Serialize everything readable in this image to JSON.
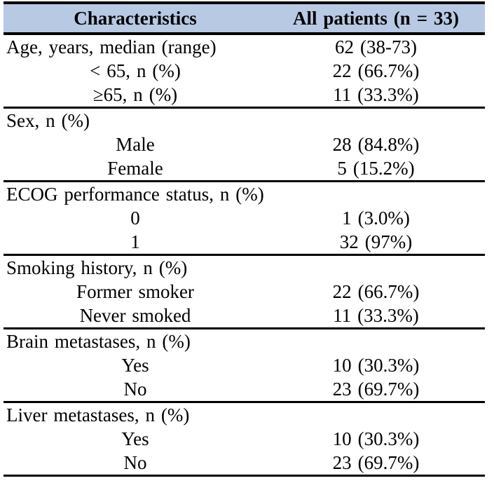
{
  "table": {
    "header": {
      "col1": "Characteristics",
      "col2": "All patients (n = 33)"
    },
    "colors": {
      "header_bg": "#b8c9e4",
      "rule": "#000000",
      "text": "#000000"
    },
    "sections": [
      {
        "rows": [
          {
            "label": "Age, years, median (range)",
            "value": "62 (38-73)"
          },
          {
            "label": "< 65, n (%)",
            "value": "22 (66.7%)"
          },
          {
            "label": "≥65, n (%)",
            "value": "11 (33.3%)"
          }
        ]
      },
      {
        "rows": [
          {
            "label": "Sex, n (%)",
            "value": ""
          },
          {
            "label": "Male",
            "value": "28 (84.8%)"
          },
          {
            "label": "Female",
            "value": "5 (15.2%)"
          }
        ]
      },
      {
        "rows": [
          {
            "label": "ECOG performance status, n (%)",
            "value": ""
          },
          {
            "label": "0",
            "value": "1 (3.0%)"
          },
          {
            "label": "1",
            "value": "32 (97%)"
          }
        ]
      },
      {
        "rows": [
          {
            "label": "Smoking history, n (%)",
            "value": ""
          },
          {
            "label": "Former smoker",
            "value": "22 (66.7%)"
          },
          {
            "label": "Never smoked",
            "value": "11 (33.3%)"
          }
        ]
      },
      {
        "rows": [
          {
            "label": "Brain metastases, n (%)",
            "value": ""
          },
          {
            "label": "Yes",
            "value": "10 (30.3%)"
          },
          {
            "label": "No",
            "value": "23 (69.7%)"
          }
        ]
      },
      {
        "rows": [
          {
            "label": "Liver metastases, n (%)",
            "value": ""
          },
          {
            "label": "Yes",
            "value": "10 (30.3%)"
          },
          {
            "label": "No",
            "value": "23 (69.7%)"
          }
        ]
      }
    ]
  }
}
